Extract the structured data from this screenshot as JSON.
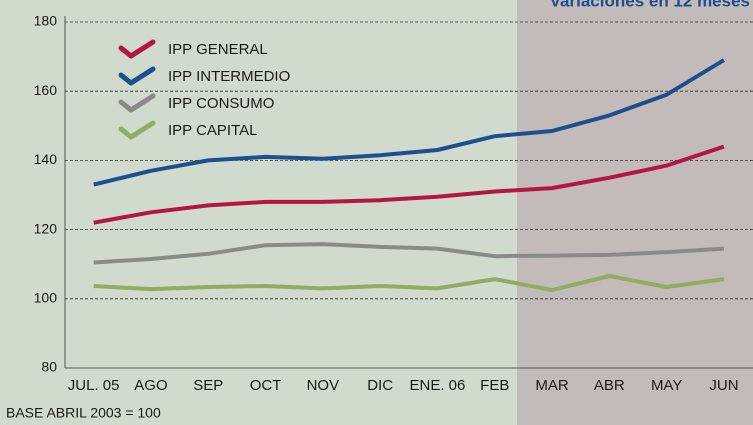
{
  "chart_data": {
    "type": "line",
    "title": "Variaciones en 12 meses",
    "note": "BASE ABRIL 2003 = 100",
    "categories": [
      "JUL. 05",
      "AGO",
      "SEP",
      "OCT",
      "NOV",
      "DIC",
      "ENE. 06",
      "FEB",
      "MAR",
      "ABR",
      "MAY",
      "JUN"
    ],
    "series": [
      {
        "name": "IPP GENERAL",
        "color": "#b5163f",
        "values": [
          122,
          125,
          127,
          128,
          128,
          128.5,
          129.5,
          131,
          132,
          135,
          138.5,
          144
        ]
      },
      {
        "name": "IPP INTERMEDIO",
        "color": "#1c4f8f",
        "values": [
          133,
          137,
          140,
          141,
          140.5,
          141.5,
          143,
          147,
          148.5,
          153,
          159,
          169
        ]
      },
      {
        "name": "IPP CONSUMO",
        "color": "#8a8a8a",
        "values": [
          110.5,
          111.5,
          113,
          115.5,
          115.8,
          115,
          114.5,
          112.3,
          112.5,
          112.7,
          113.5,
          114.5
        ]
      },
      {
        "name": "IPP CAPITAL",
        "color": "#8fad63",
        "values": [
          103.7,
          102.8,
          103.4,
          103.7,
          103,
          103.7,
          103,
          105.7,
          102.5,
          106.6,
          103.4,
          105.7
        ]
      }
    ],
    "ylim": [
      80,
      180
    ],
    "yticks": [
      80,
      100,
      120,
      140,
      160,
      180
    ],
    "grid": true,
    "legend": "top-left"
  }
}
